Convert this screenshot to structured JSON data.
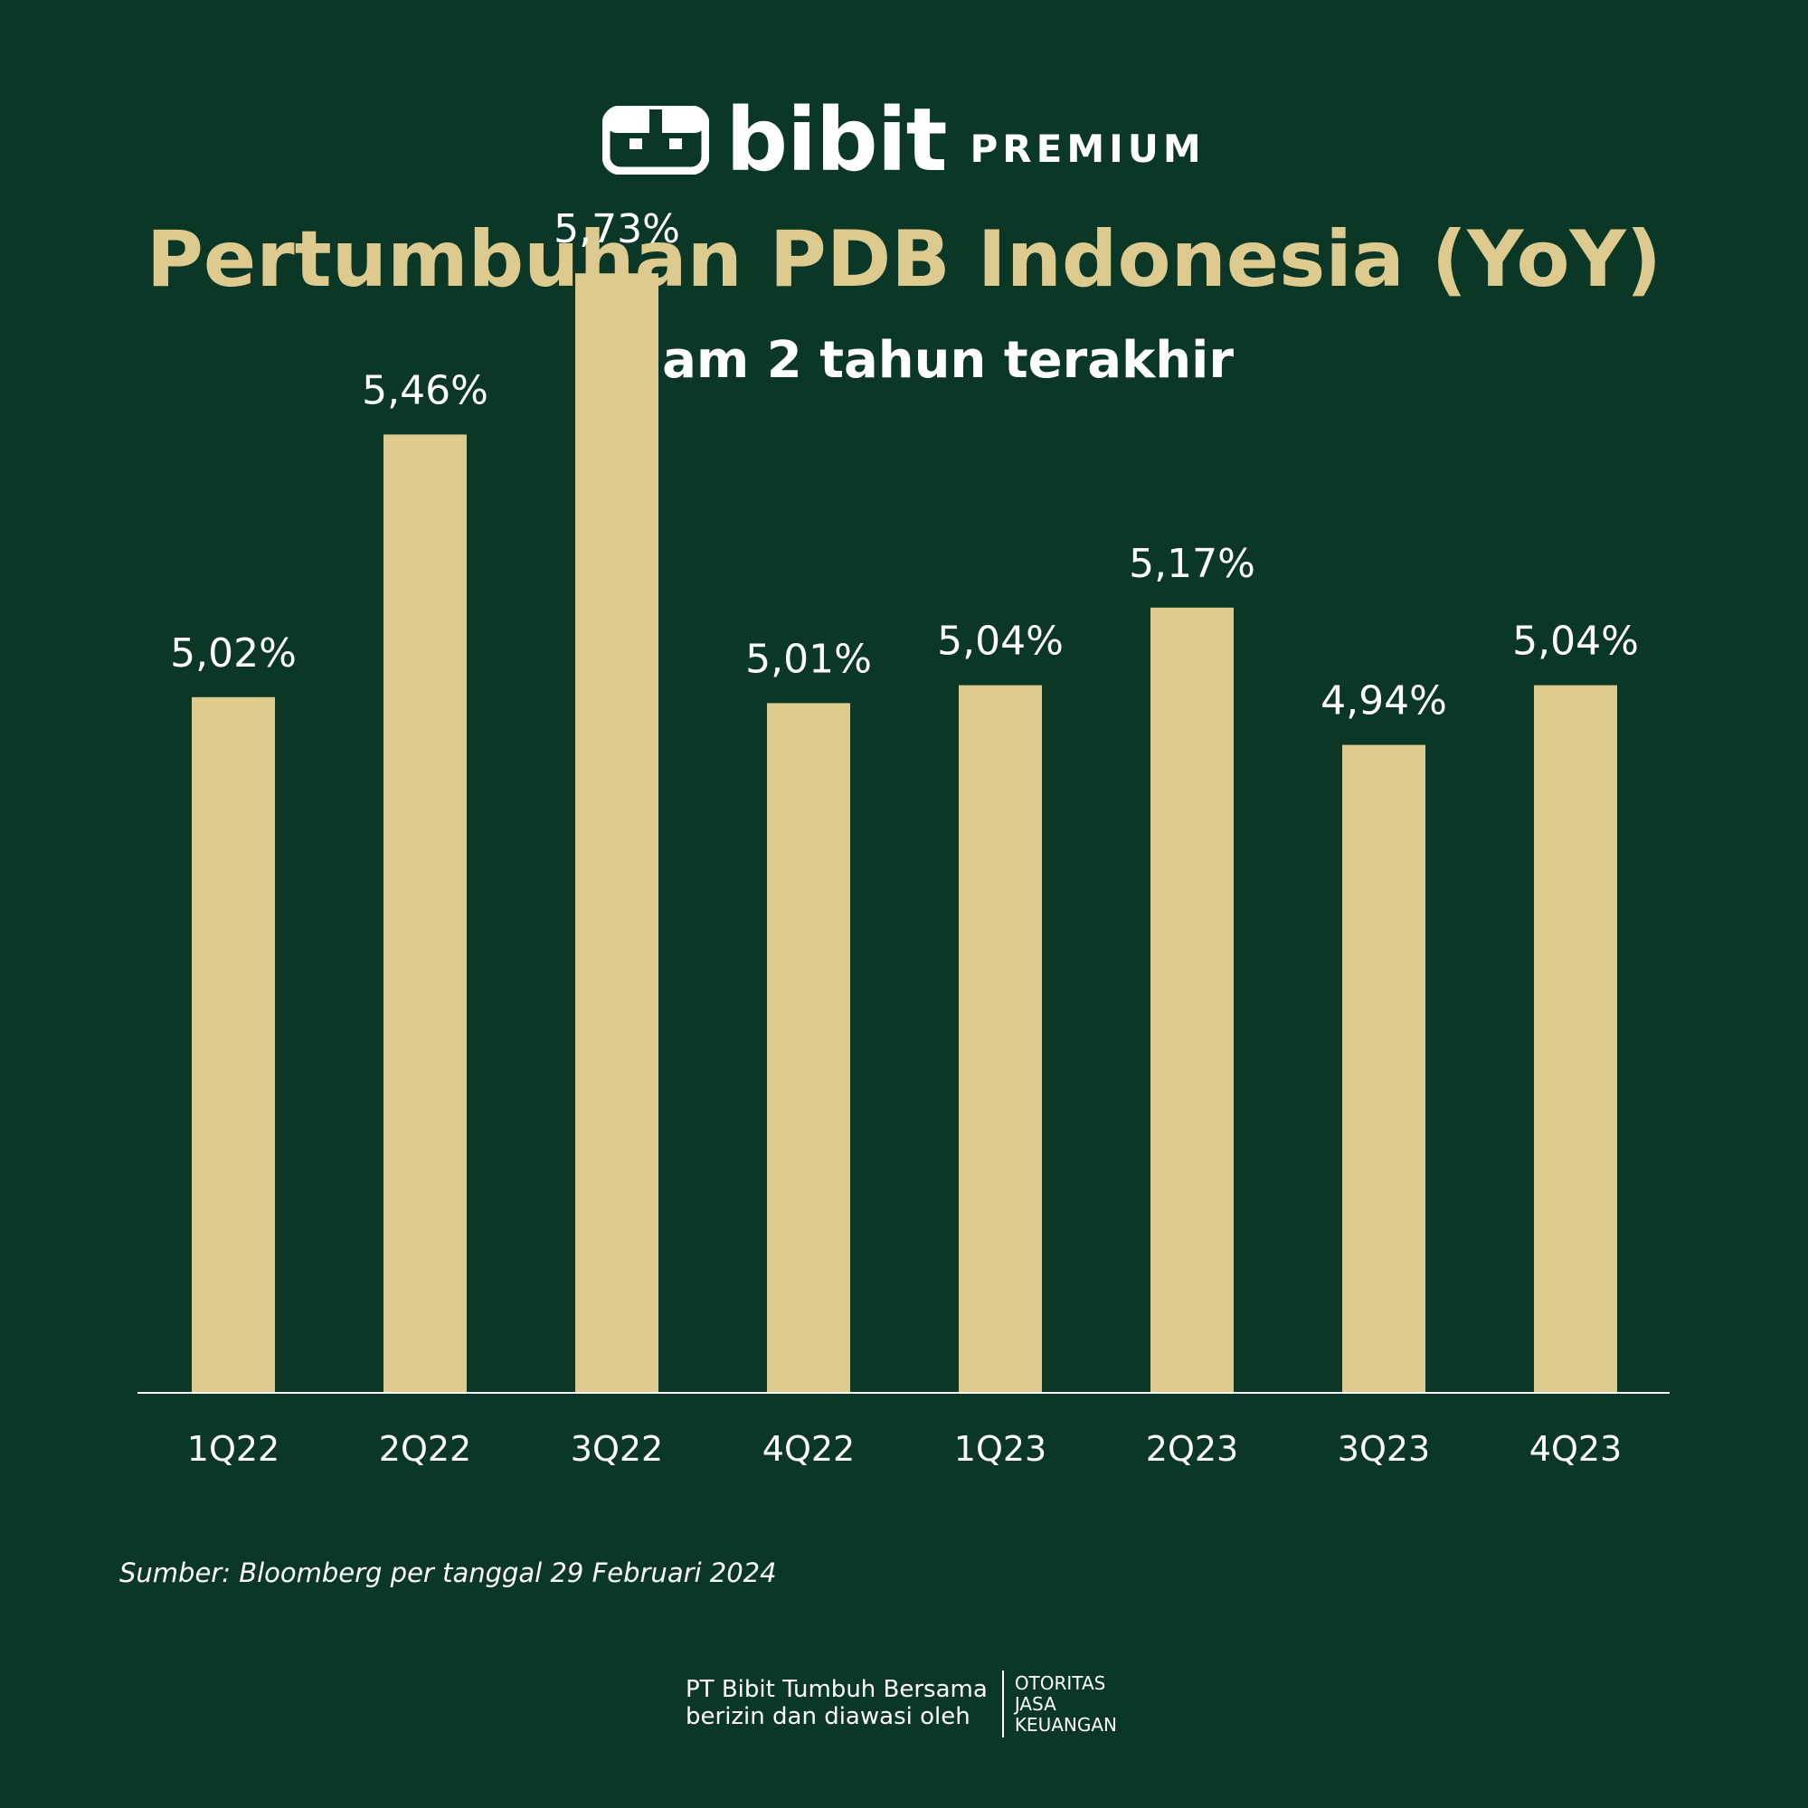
{
  "brand": {
    "name": "bibit",
    "tier": "PREMIUM"
  },
  "header": {
    "title": "Pertumbuhan PDB Indonesia (YoY)",
    "subtitle": "dalam 2 tahun terakhir"
  },
  "colors": {
    "background": "#0b3826",
    "bar": "#ddcc8e",
    "title": "#ddca8e",
    "text": "#ffffff"
  },
  "chart_data": {
    "type": "bar",
    "title": "Pertumbuhan PDB Indonesia (YoY)",
    "subtitle": "dalam 2 tahun terakhir",
    "categories": [
      "1Q22",
      "2Q22",
      "3Q22",
      "4Q22",
      "1Q23",
      "2Q23",
      "3Q23",
      "4Q23"
    ],
    "values": [
      5.02,
      5.46,
      5.73,
      5.01,
      5.04,
      5.17,
      4.94,
      5.04
    ],
    "data_labels": [
      "5,02%",
      "5,46%",
      "5,73%",
      "5,01%",
      "5,04%",
      "5,17%",
      "4,94%",
      "5,04%"
    ],
    "xlabel": "",
    "ylabel": "",
    "ylim": [
      0,
      6
    ],
    "grid": false,
    "legend": "none"
  },
  "source": "Sumber: Bloomberg per tanggal 29 Februari 2024",
  "footer": {
    "company_line1": "PT Bibit Tumbuh Bersama",
    "company_line2": "berizin dan diawasi oleh",
    "regulator_line1": "OTORITAS",
    "regulator_line2": "JASA",
    "regulator_line3": "KEUANGAN"
  }
}
